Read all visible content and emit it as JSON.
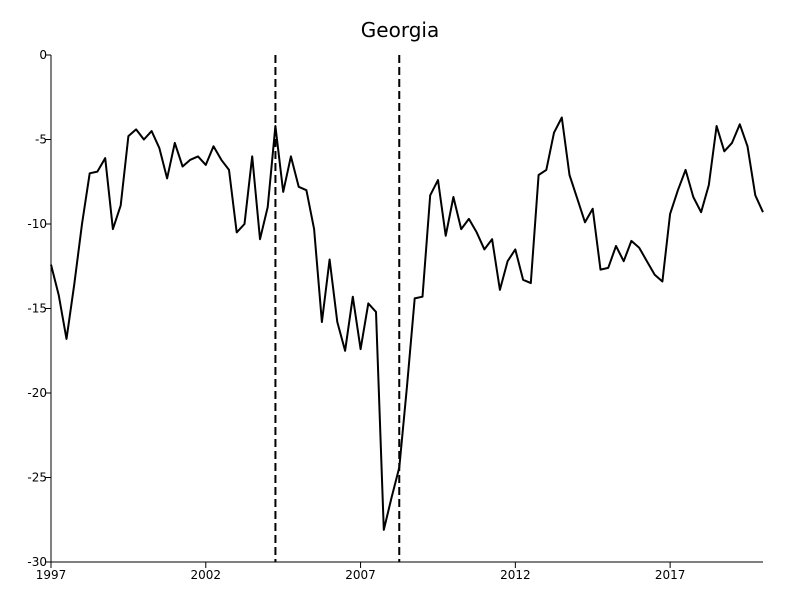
{
  "chart_data": {
    "type": "line",
    "title": "Georgia",
    "xlabel": "",
    "ylabel": "",
    "xlim": [
      1997,
      2020
    ],
    "ylim": [
      -30,
      0
    ],
    "x_ticks": [
      1997,
      2002,
      2007,
      2012,
      2017
    ],
    "x_tick_labels": [
      "1997",
      "2002",
      "2007",
      "2012",
      "2017"
    ],
    "y_ticks": [
      0,
      -5,
      -10,
      -15,
      -20,
      -25,
      -30
    ],
    "y_tick_labels": [
      "0",
      "-5",
      "-10",
      "-15",
      "-20",
      "-25",
      "-30"
    ],
    "grid": false,
    "legend": "none",
    "vertical_lines": [
      {
        "x": 2004.25,
        "style": "dashed"
      },
      {
        "x": 2008.25,
        "style": "dashed"
      }
    ],
    "series": [
      {
        "name": "Georgia",
        "x": [
          1997.0,
          1997.25,
          1997.5,
          1997.75,
          1998.0,
          1998.25,
          1998.5,
          1998.75,
          1999.0,
          1999.25,
          1999.5,
          1999.75,
          2000.0,
          2000.25,
          2000.5,
          2000.75,
          2001.0,
          2001.25,
          2001.5,
          2001.75,
          2002.0,
          2002.25,
          2002.5,
          2002.75,
          2003.0,
          2003.25,
          2003.5,
          2003.75,
          2004.0,
          2004.25,
          2004.5,
          2004.75,
          2005.0,
          2005.25,
          2005.5,
          2005.75,
          2006.0,
          2006.25,
          2006.5,
          2006.75,
          2007.0,
          2007.25,
          2007.5,
          2007.75,
          2008.0,
          2008.25,
          2008.5,
          2008.75,
          2009.0,
          2009.25,
          2009.5,
          2009.75,
          2010.0,
          2010.25,
          2010.5,
          2010.75,
          2011.0,
          2011.25,
          2011.5,
          2011.75,
          2012.0,
          2012.25,
          2012.5,
          2012.75,
          2013.0,
          2013.25,
          2013.5,
          2013.75,
          2014.0,
          2014.25,
          2014.5,
          2014.75,
          2015.0,
          2015.25,
          2015.5,
          2015.75,
          2016.0,
          2016.25,
          2016.5,
          2016.75,
          2017.0,
          2017.25,
          2017.5,
          2017.75,
          2018.0,
          2018.25,
          2018.5,
          2018.75,
          2019.0,
          2019.25,
          2019.5,
          2019.75,
          2020.0
        ],
        "values": [
          -12.4,
          -14.2,
          -16.8,
          -13.6,
          -10.0,
          -7.0,
          -6.9,
          -6.1,
          -10.3,
          -8.9,
          -4.8,
          -4.4,
          -5.0,
          -4.5,
          -5.5,
          -7.3,
          -5.2,
          -6.6,
          -6.2,
          -6.0,
          -6.5,
          -5.4,
          -6.2,
          -6.8,
          -10.5,
          -10.0,
          -6.0,
          -10.9,
          -9.0,
          -4.2,
          -8.1,
          -6.0,
          -7.8,
          -8.0,
          -10.3,
          -15.8,
          -12.1,
          -15.8,
          -17.5,
          -14.3,
          -17.4,
          -14.7,
          -15.2,
          -28.1,
          -26.2,
          -24.4,
          -19.6,
          -14.4,
          -14.3,
          -8.3,
          -7.4,
          -10.7,
          -8.4,
          -10.3,
          -9.7,
          -10.5,
          -11.5,
          -10.9,
          -13.9,
          -12.2,
          -11.5,
          -13.3,
          -13.5,
          -7.1,
          -6.8,
          -4.6,
          -3.7,
          -7.1,
          -8.5,
          -9.9,
          -9.1,
          -12.7,
          -12.6,
          -11.3,
          -12.2,
          -11.0,
          -11.4,
          -12.2,
          -13.0,
          -13.4,
          -9.4,
          -8.0,
          -6.8,
          -8.4,
          -9.3,
          -7.7,
          -4.2,
          -5.7,
          -5.2,
          -4.1,
          -5.4,
          -8.3,
          -9.3
        ]
      }
    ]
  }
}
